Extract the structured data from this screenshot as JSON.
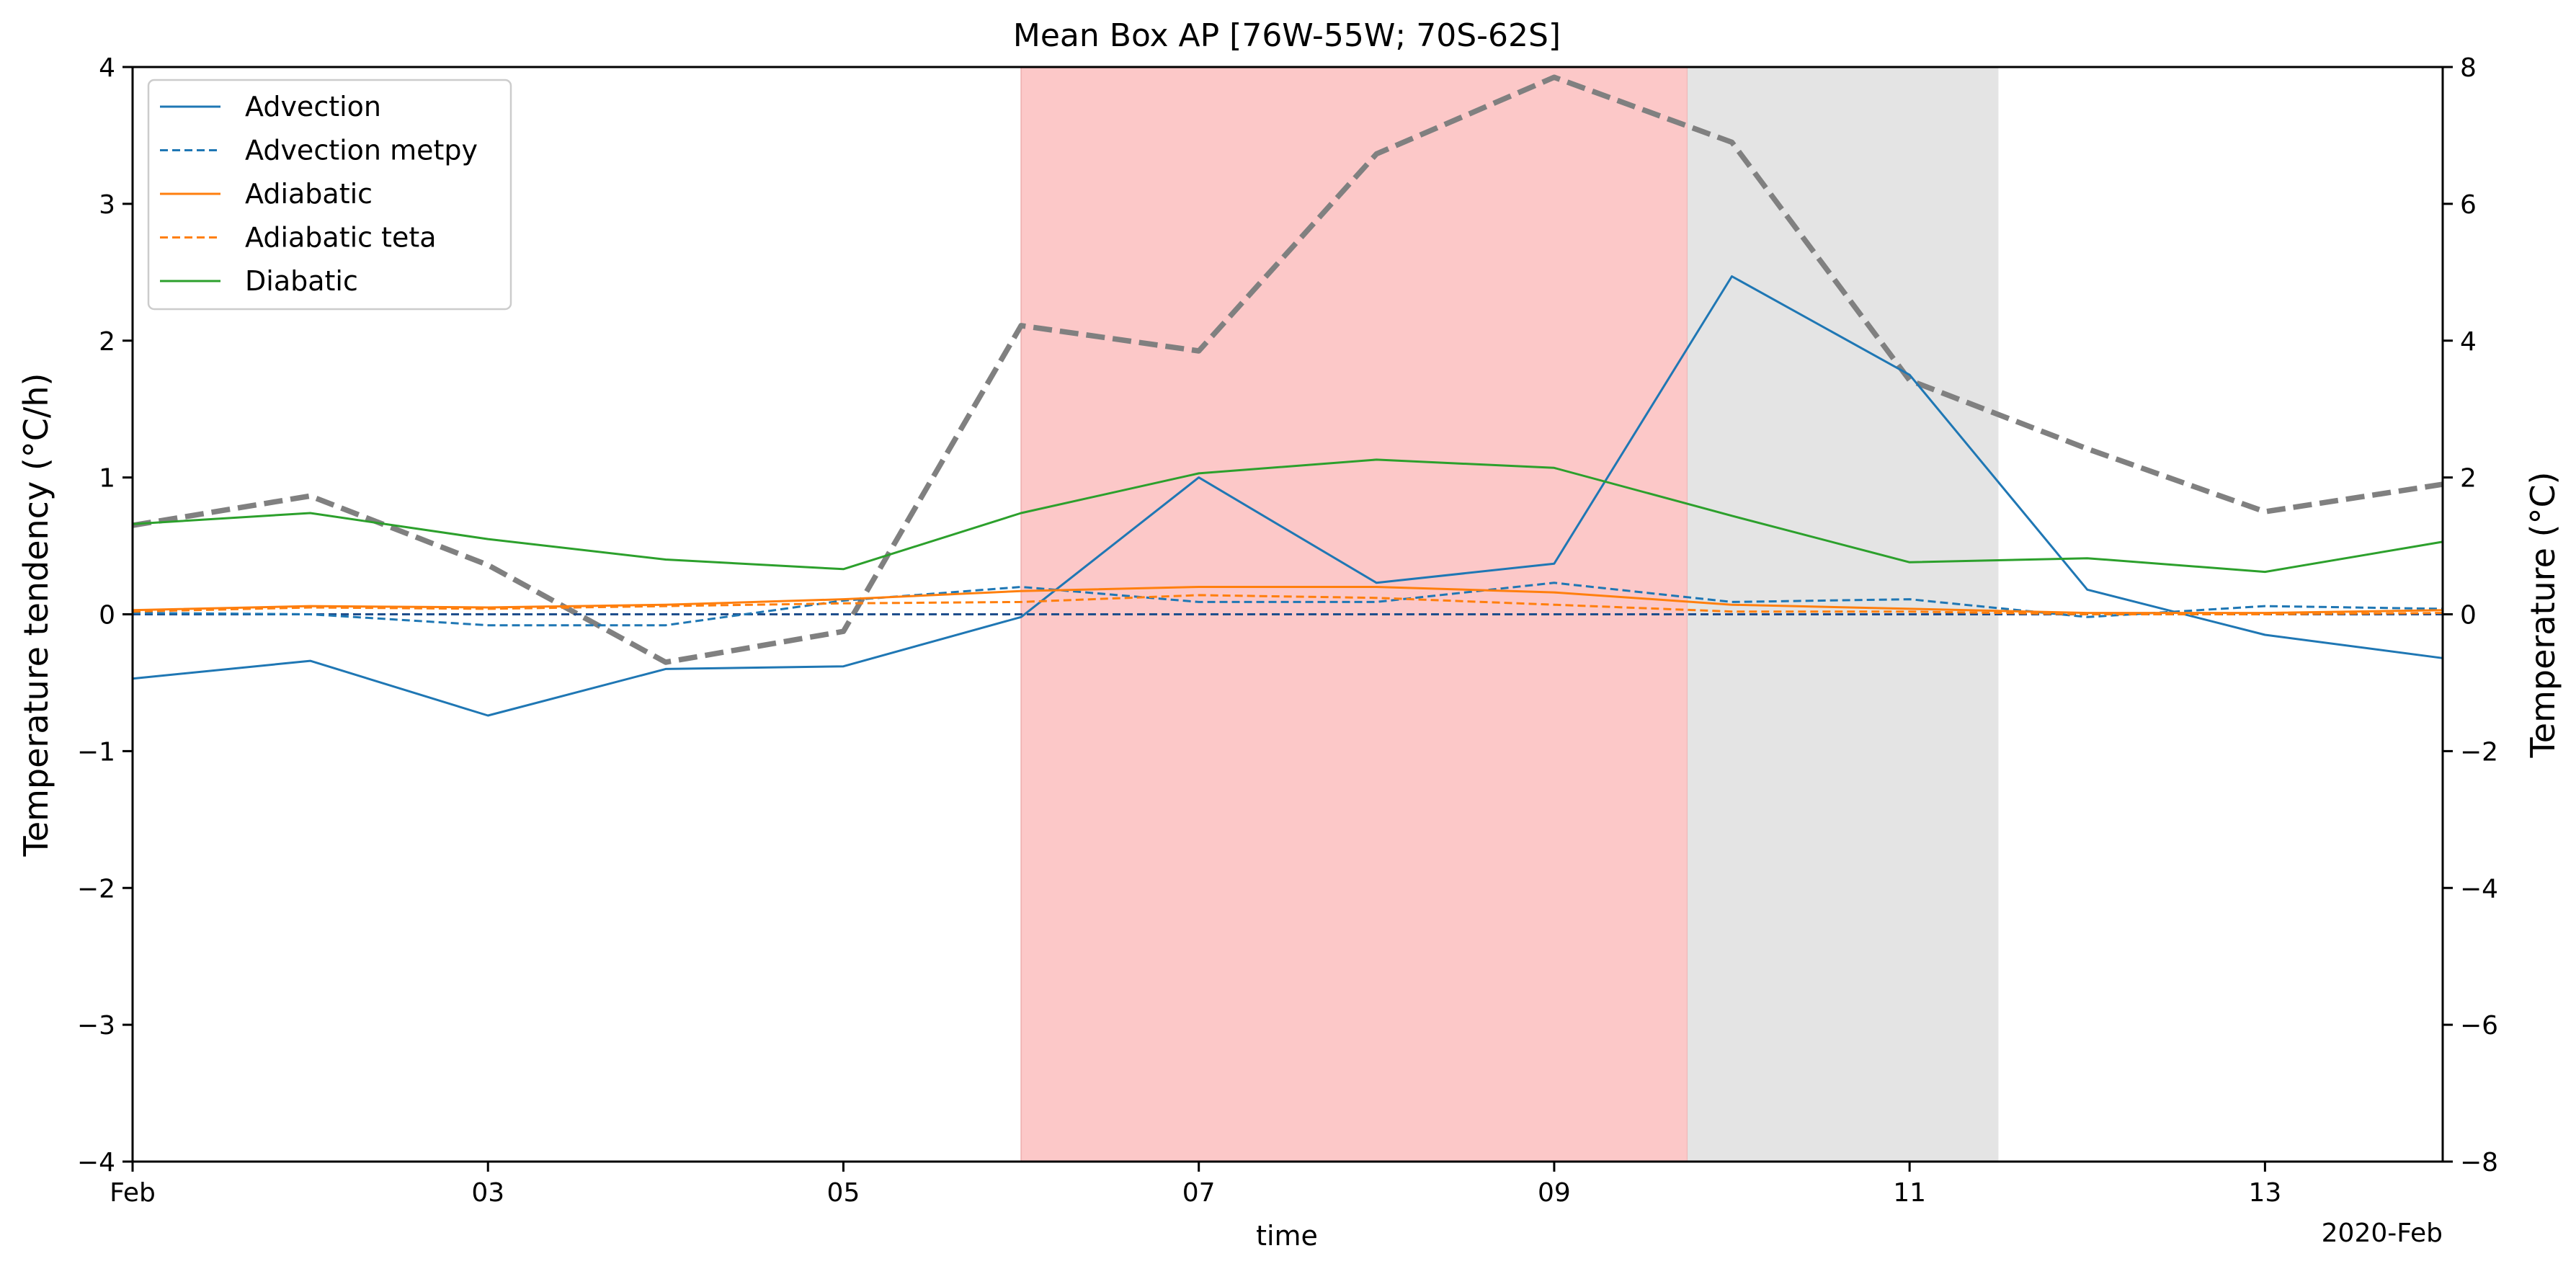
{
  "chart_data": {
    "type": "line",
    "title": "Mean Box AP [76W-55W; 70S-62S]",
    "xlabel": "time",
    "ylabel_left": "Temperature tendency (°C/h)",
    "ylabel_right": "Temperature (°C)",
    "x_offset_label": "2020-Feb",
    "x": [
      "2020-02-01",
      "2020-02-02",
      "2020-02-03",
      "2020-02-04",
      "2020-02-05",
      "2020-02-06",
      "2020-02-07",
      "2020-02-08",
      "2020-02-09",
      "2020-02-10",
      "2020-02-11",
      "2020-02-12",
      "2020-02-13",
      "2020-02-14"
    ],
    "xlim": [
      "2020-02-01",
      "2020-02-14"
    ],
    "x_tick_labels": [
      "Feb",
      "03",
      "05",
      "07",
      "09",
      "11",
      "13"
    ],
    "x_tick_dates": [
      "2020-02-01",
      "2020-02-03",
      "2020-02-05",
      "2020-02-07",
      "2020-02-09",
      "2020-02-11",
      "2020-02-13"
    ],
    "ylim_left": [
      -4,
      4
    ],
    "y_ticks_left": [
      "−4",
      "−3",
      "−2",
      "−1",
      "0",
      "1",
      "2",
      "3",
      "4"
    ],
    "ylim_right": [
      -8,
      8
    ],
    "y_ticks_right": [
      "−8",
      "−6",
      "−4",
      "−2",
      "0",
      "2",
      "4",
      "6",
      "8"
    ],
    "grid": false,
    "legend_position": "top-left",
    "shaded_regions": [
      {
        "start": "2020-02-06",
        "end": "2020-02-09T18:00",
        "color": "#fcc8c8"
      },
      {
        "start": "2020-02-09T18:00",
        "end": "2020-02-11T12:00",
        "color": "#e4e4e4"
      }
    ],
    "series": [
      {
        "name": "Advection",
        "axis": "left",
        "color": "#1f77b4",
        "style": "solid",
        "values": [
          -0.47,
          -0.34,
          -0.74,
          -0.4,
          -0.38,
          -0.02,
          1.0,
          0.23,
          0.37,
          2.47,
          1.75,
          0.18,
          -0.15,
          -0.32
        ]
      },
      {
        "name": "Advection metpy",
        "axis": "left",
        "color": "#1f77b4",
        "style": "dashed",
        "values": [
          0.01,
          0.0,
          -0.08,
          -0.08,
          0.1,
          0.2,
          0.09,
          0.09,
          0.23,
          0.09,
          0.11,
          -0.02,
          0.06,
          0.04
        ]
      },
      {
        "name": "Adiabatic",
        "axis": "left",
        "color": "#ff7f0e",
        "style": "solid",
        "values": [
          0.03,
          0.06,
          0.05,
          0.07,
          0.11,
          0.17,
          0.2,
          0.2,
          0.16,
          0.07,
          0.04,
          0.01,
          0.01,
          0.03
        ]
      },
      {
        "name": "Adiabatic teta",
        "axis": "left",
        "color": "#ff7f0e",
        "style": "dashed",
        "values": [
          0.02,
          0.05,
          0.04,
          0.06,
          0.08,
          0.09,
          0.14,
          0.12,
          0.07,
          0.02,
          0.02,
          0.0,
          0.0,
          0.01
        ]
      },
      {
        "name": "Diabatic",
        "axis": "left",
        "color": "#2ca02c",
        "style": "solid",
        "values": [
          0.66,
          0.74,
          0.55,
          0.4,
          0.33,
          0.74,
          1.03,
          1.13,
          1.07,
          0.72,
          0.38,
          0.41,
          0.31,
          0.53
        ]
      },
      {
        "axis": "left",
        "color": "#1f4e8c",
        "style": "dashed",
        "values": [
          0.0,
          0.0,
          0.0,
          0.0,
          0.0,
          0.0,
          0.0,
          0.0,
          0.0,
          0.0,
          0.0,
          0.0,
          0.0,
          0.0
        ]
      },
      {
        "axis": "right",
        "color": "#808080",
        "style": "thick-dashed",
        "values": [
          1.3,
          1.73,
          0.72,
          -0.7,
          -0.25,
          4.22,
          3.85,
          6.73,
          7.85,
          6.9,
          3.42,
          2.42,
          1.5,
          1.9
        ]
      }
    ]
  }
}
